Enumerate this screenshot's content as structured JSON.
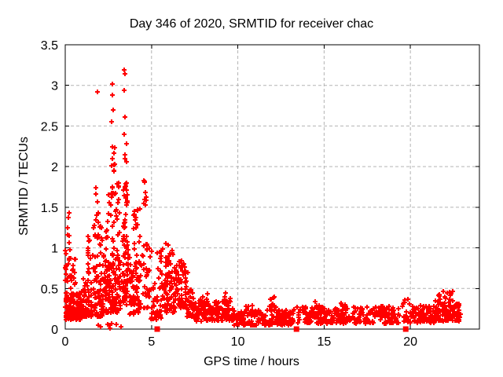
{
  "chart_data": {
    "type": "scatter",
    "title": "Day 346 of 2020, SRMTID for receiver chac",
    "xlabel": "GPS time / hours",
    "ylabel": "SRMTID / TECUs",
    "xlim": [
      0,
      24
    ],
    "ylim": [
      0,
      3.5
    ],
    "xticks": [
      0,
      5,
      10,
      15,
      20
    ],
    "xtick_labels": [
      "0",
      "5",
      "10",
      "15",
      "20"
    ],
    "yticks": [
      0,
      0.5,
      1,
      1.5,
      2,
      2.5,
      3,
      3.5
    ],
    "ytick_labels": [
      "0",
      "0.5",
      "1",
      "1.5",
      "2",
      "2.5",
      "3",
      "3.5"
    ],
    "grid": true,
    "legend": "none",
    "colors": {
      "marker": "#ff0000",
      "grid": "#b3b3b3",
      "border": "#000000",
      "text": "#000000"
    },
    "series": [
      {
        "name": "srmtid-points",
        "marker": "plus",
        "clusters": [
          [
            0.02,
            0.95,
            0.12,
            0.45,
            140,
            "band"
          ],
          [
            0.1,
            0.7,
            0.45,
            0.9,
            20,
            "uniform"
          ],
          [
            0.13,
            0.3,
            0.95,
            1.45,
            8,
            "uniform"
          ],
          [
            0.0,
            0.06,
            0.5,
            1.3,
            9,
            "uniform"
          ],
          [
            0.95,
            2.2,
            0.15,
            0.62,
            100,
            "band"
          ],
          [
            1.3,
            1.45,
            0.65,
            1.15,
            14,
            "uniform"
          ],
          [
            1.55,
            2.15,
            0.6,
            1.3,
            30,
            "uniform"
          ],
          [
            1.78,
            1.95,
            1.3,
            1.75,
            8,
            "uniform"
          ],
          [
            2.2,
            3.2,
            0.2,
            0.95,
            120,
            "band"
          ],
          [
            2.35,
            3.15,
            0.95,
            1.8,
            40,
            "uniform"
          ],
          [
            2.7,
            2.87,
            1.85,
            2.45,
            7,
            "uniform"
          ],
          [
            1.9,
            3.3,
            0.01,
            0.08,
            8,
            "uniform"
          ],
          [
            3.3,
            3.68,
            0.3,
            1.15,
            55,
            "band"
          ],
          [
            3.35,
            3.62,
            1.15,
            1.8,
            22,
            "uniform"
          ],
          [
            3.42,
            3.55,
            2.05,
            2.5,
            4,
            "uniform"
          ],
          [
            3.7,
            4.45,
            0.18,
            0.95,
            75,
            "band"
          ],
          [
            3.95,
            4.35,
            0.95,
            1.5,
            16,
            "uniform"
          ],
          [
            4.5,
            4.9,
            0.25,
            1.1,
            32,
            "band"
          ],
          [
            4.55,
            4.78,
            1.5,
            1.87,
            9,
            "uniform"
          ],
          [
            4.95,
            5.65,
            0.12,
            0.6,
            45,
            "band"
          ],
          [
            5.35,
            5.65,
            0.6,
            1.0,
            10,
            "uniform"
          ],
          [
            5.7,
            6.35,
            0.2,
            0.95,
            70,
            "band"
          ],
          [
            6.3,
            7.1,
            0.25,
            0.85,
            80,
            "band"
          ],
          [
            7.05,
            7.5,
            0.15,
            0.5,
            35,
            "band"
          ],
          [
            7.5,
            9.8,
            0.1,
            0.35,
            160,
            "band"
          ],
          [
            7.8,
            8.35,
            0.3,
            0.44,
            10,
            "uniform"
          ],
          [
            9.15,
            9.6,
            0.28,
            0.45,
            8,
            "uniform"
          ],
          [
            9.8,
            13.25,
            0.05,
            0.24,
            170,
            "band"
          ],
          [
            10.45,
            10.9,
            0.2,
            0.32,
            8,
            "uniform"
          ],
          [
            11.85,
            12.25,
            0.2,
            0.42,
            14,
            "uniform"
          ],
          [
            13.45,
            16.0,
            0.07,
            0.28,
            130,
            "band"
          ],
          [
            14.4,
            14.75,
            0.25,
            0.35,
            6,
            "uniform"
          ],
          [
            15.9,
            16.35,
            0.25,
            0.36,
            7,
            "uniform"
          ],
          [
            16.0,
            19.35,
            0.07,
            0.28,
            160,
            "band"
          ],
          [
            19.55,
            21.4,
            0.08,
            0.3,
            100,
            "band"
          ],
          [
            19.6,
            19.95,
            0.28,
            0.38,
            6,
            "uniform"
          ],
          [
            21.4,
            22.9,
            0.1,
            0.35,
            110,
            "band"
          ],
          [
            21.6,
            22.5,
            0.35,
            0.48,
            14,
            "uniform"
          ]
        ],
        "outlier_points": [
          [
            1.88,
            2.92
          ],
          [
            2.75,
            3.02
          ],
          [
            2.75,
            2.88
          ],
          [
            3.43,
            3.19
          ],
          [
            3.48,
            3.14
          ],
          [
            3.43,
            2.94
          ],
          [
            2.79,
            2.7
          ],
          [
            3.48,
            2.61
          ],
          [
            2.7,
            2.55
          ],
          [
            2.75,
            2.24
          ],
          [
            3.48,
            2.15
          ],
          [
            2.7,
            2.01
          ],
          [
            2.84,
            2.02
          ],
          [
            4.58,
            1.81
          ],
          [
            5.84,
            1.05
          ],
          [
            5.95,
            1.03
          ],
          [
            5.02,
            0.96
          ],
          [
            5.31,
            0.94
          ],
          [
            6.2,
            0.97
          ]
        ]
      },
      {
        "name": "baseline-square-markers",
        "marker": "filled-square",
        "points": [
          [
            5.33,
            0
          ],
          [
            13.4,
            0
          ],
          [
            19.73,
            0
          ]
        ]
      }
    ]
  }
}
